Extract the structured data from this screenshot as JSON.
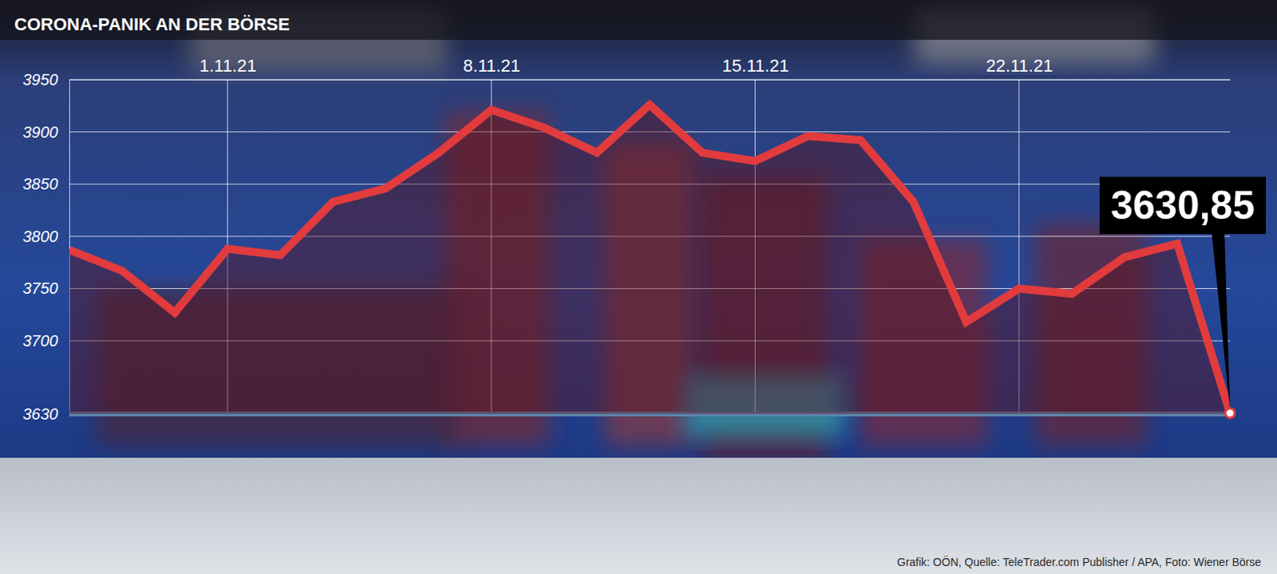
{
  "chart_data": {
    "type": "line",
    "title": "CORONA-PANIK AN DER BÖRSE",
    "source": "Grafik: OÖN, Quelle: TeleTrader.com Publisher / APA, Foto: Wiener Börse",
    "categories": [
      null,
      null,
      null,
      "1.11.21",
      null,
      null,
      null,
      null,
      "8.11.21",
      null,
      null,
      null,
      null,
      "15.11.21",
      null,
      null,
      null,
      null,
      "22.11.21",
      null,
      null,
      null,
      null
    ],
    "values": [
      3787,
      3767,
      3727,
      3788,
      3782,
      3833,
      3846,
      3880,
      3921,
      3904,
      3880,
      3926,
      3880,
      3872,
      3896,
      3892,
      3833,
      3718,
      3750,
      3745,
      3780,
      3793,
      3630.85
    ],
    "value_labels": [
      null,
      null,
      null,
      null,
      null,
      null,
      null,
      null,
      null,
      null,
      null,
      null,
      null,
      null,
      null,
      null,
      null,
      null,
      null,
      null,
      null,
      null,
      "3630,85"
    ],
    "color": "#e23b3d",
    "ylim": [
      3630,
      3950
    ],
    "yticks": [
      3630,
      3700,
      3750,
      3800,
      3850,
      3900,
      3950
    ],
    "grid": true
  }
}
